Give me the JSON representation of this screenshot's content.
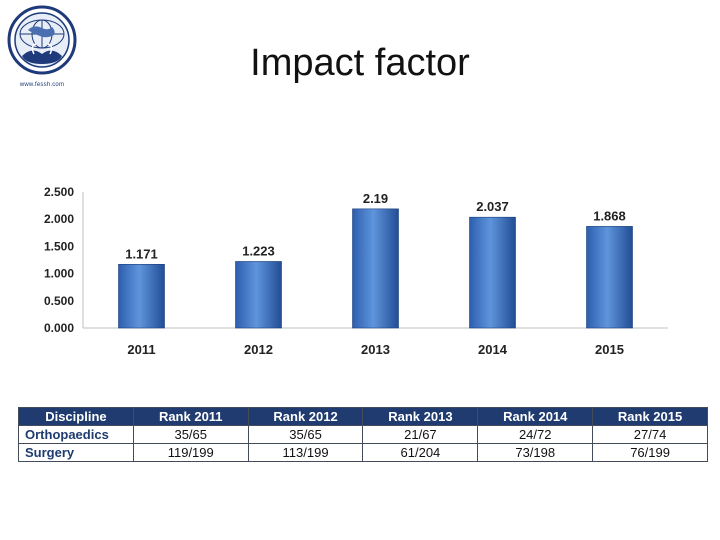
{
  "slide": {
    "title": "Impact factor",
    "logo_url_text": "www.fessh.com"
  },
  "colors": {
    "bar_fill_top": "#5a8fd6",
    "bar_fill_bottom": "#1f4f9e",
    "header_bg": "#1f3b70",
    "logo_blue": "#1e3a7a"
  },
  "chart_data": {
    "type": "bar",
    "title": "",
    "xlabel": "",
    "ylabel": "",
    "categories": [
      "2011",
      "2012",
      "2013",
      "2014",
      "2015"
    ],
    "values": [
      1.171,
      1.223,
      2.19,
      2.037,
      1.868
    ],
    "data_labels": [
      "1.171",
      "1.223",
      "2.19",
      "2.037",
      "1.868"
    ],
    "y_ticks": [
      0,
      0.5,
      1.0,
      1.5,
      2.0,
      2.5
    ],
    "y_tick_labels": [
      "0.000",
      "0.500",
      "1.000",
      "1.500",
      "2.000",
      "2.500"
    ],
    "ylim": [
      0,
      2.5
    ],
    "grid": false,
    "legend": "none"
  },
  "rank_table": {
    "headers": [
      "Discipline",
      "Rank 2011",
      "Rank 2012",
      "Rank 2013",
      "Rank 2014",
      "Rank 2015"
    ],
    "rows": [
      [
        "Orthopaedics",
        "35/65",
        "35/65",
        "21/67",
        "24/72",
        "27/74"
      ],
      [
        "Surgery",
        "119/199",
        "113/199",
        "61/204",
        "73/198",
        "76/199"
      ]
    ]
  }
}
